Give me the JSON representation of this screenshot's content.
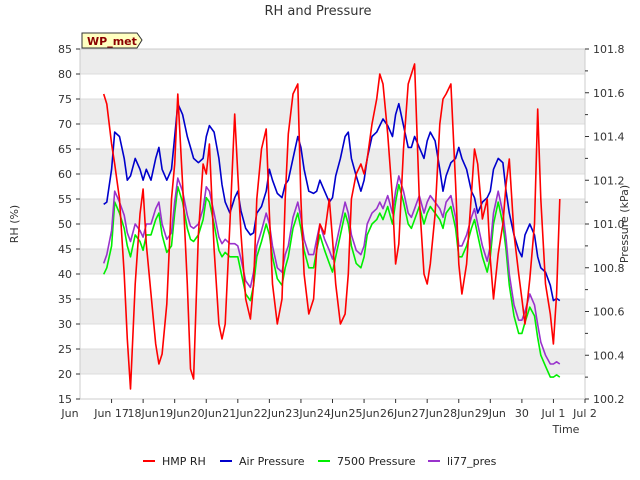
{
  "chart_data": {
    "type": "line",
    "title": "RH and Pressure",
    "badge": "WP_met",
    "xlabel": "Time",
    "ylabel_left": "RH (%)",
    "ylabel_right": "Pressure (kPa)",
    "x_ticks": [
      "Jun 17",
      "Jun 18",
      "Jun 19",
      "Jun 20",
      "Jun 21",
      "Jun 22",
      "Jun 23",
      "Jun 24",
      "Jun 25",
      "Jun 26",
      "Jun 27",
      "Jun 28",
      "Jun 29",
      "Jun 30",
      "Jul 1",
      "Jul 2"
    ],
    "x_tick_display": [
      "Jun 17",
      "18Jun",
      "19Jun",
      "20Jun",
      "21Jun",
      "22Jun",
      "23Jun",
      "24Jun",
      "25Jun",
      "26Jun",
      "27Jun",
      "28Jun",
      "29Jun",
      "30",
      "Jul 1",
      "Jul 2"
    ],
    "xlim_days": [
      16,
      32
    ],
    "ylim_left": [
      15,
      85
    ],
    "yticks_left": [
      15,
      20,
      25,
      30,
      35,
      40,
      45,
      50,
      55,
      60,
      65,
      70,
      75,
      80,
      85
    ],
    "ylim_right": [
      100.2,
      101.8
    ],
    "yticks_right": [
      "100.2",
      "100.4",
      "100.6",
      "100.8",
      "101.0",
      "101.2",
      "101.4",
      "101.6",
      "101.8"
    ],
    "grid": true,
    "legend_position": "bottom",
    "series": [
      {
        "name": "HMP RH",
        "axis": "left",
        "color": "#ff0000",
        "x": [
          16.75,
          16.85,
          17.0,
          17.1,
          17.25,
          17.4,
          17.5,
          17.6,
          17.75,
          17.9,
          18.0,
          18.1,
          18.25,
          18.4,
          18.5,
          18.6,
          18.75,
          18.9,
          19.0,
          19.1,
          19.25,
          19.4,
          19.5,
          19.6,
          19.75,
          19.9,
          20.0,
          20.1,
          20.25,
          20.4,
          20.5,
          20.6,
          20.75,
          20.9,
          21.0,
          21.1,
          21.25,
          21.4,
          21.5,
          21.6,
          21.75,
          21.9,
          22.0,
          22.1,
          22.25,
          22.4,
          22.5,
          22.6,
          22.75,
          22.9,
          23.0,
          23.1,
          23.25,
          23.4,
          23.5,
          23.6,
          23.75,
          23.9,
          24.0,
          24.1,
          24.25,
          24.4,
          24.5,
          24.6,
          24.75,
          24.9,
          25.0,
          25.1,
          25.25,
          25.4,
          25.5,
          25.6,
          25.75,
          25.9,
          26.0,
          26.1,
          26.25,
          26.4,
          26.5,
          26.6,
          26.75,
          26.9,
          27.0,
          27.1,
          27.25,
          27.4,
          27.5,
          27.6,
          27.75,
          27.9,
          28.0,
          28.1,
          28.25,
          28.4,
          28.5,
          28.6,
          28.75,
          28.9,
          29.0,
          29.1,
          29.25,
          29.4,
          29.5,
          29.6,
          29.75,
          29.9,
          30.0,
          30.1,
          30.25,
          30.4,
          30.5,
          30.6,
          30.75,
          30.9,
          31.0,
          31.1,
          31.2
        ],
        "values": [
          76,
          74,
          66,
          62,
          55,
          40,
          27,
          17,
          38,
          52,
          57,
          46,
          36,
          26,
          22,
          24,
          34,
          55,
          62,
          76,
          58,
          38,
          21,
          19,
          48,
          62,
          60,
          66,
          45,
          30,
          27,
          30,
          50,
          72,
          60,
          48,
          35,
          31,
          38,
          55,
          65,
          69,
          52,
          38,
          30,
          35,
          55,
          68,
          76,
          78,
          55,
          40,
          32,
          35,
          45,
          50,
          48,
          55,
          47,
          38,
          30,
          32,
          40,
          55,
          60,
          62,
          60,
          63,
          70,
          75,
          80,
          78,
          68,
          55,
          42,
          46,
          65,
          78,
          80,
          82,
          55,
          40,
          38,
          42,
          52,
          70,
          75,
          76,
          78,
          58,
          42,
          36,
          42,
          56,
          65,
          62,
          51,
          55,
          43,
          35,
          44,
          50,
          58,
          63,
          48,
          40,
          35,
          30,
          39,
          50,
          73,
          55,
          38,
          32,
          26,
          36,
          55
        ]
      },
      {
        "name": "Air Pressure",
        "axis": "right",
        "color": "#0000cc",
        "x": [
          16.75,
          16.85,
          17.0,
          17.1,
          17.25,
          17.4,
          17.5,
          17.6,
          17.75,
          17.9,
          18.0,
          18.1,
          18.25,
          18.4,
          18.5,
          18.6,
          18.75,
          18.9,
          19.0,
          19.1,
          19.25,
          19.4,
          19.5,
          19.6,
          19.75,
          19.9,
          20.0,
          20.1,
          20.25,
          20.4,
          20.5,
          20.6,
          20.75,
          20.9,
          21.0,
          21.1,
          21.25,
          21.4,
          21.5,
          21.6,
          21.75,
          21.9,
          22.0,
          22.1,
          22.25,
          22.4,
          22.5,
          22.6,
          22.75,
          22.9,
          23.0,
          23.1,
          23.25,
          23.4,
          23.5,
          23.6,
          23.75,
          23.9,
          24.0,
          24.1,
          24.25,
          24.4,
          24.5,
          24.6,
          24.75,
          24.9,
          25.0,
          25.1,
          25.25,
          25.4,
          25.5,
          25.6,
          25.75,
          25.9,
          26.0,
          26.1,
          26.25,
          26.4,
          26.5,
          26.6,
          26.75,
          26.9,
          27.0,
          27.1,
          27.25,
          27.4,
          27.5,
          27.6,
          27.75,
          27.9,
          28.0,
          28.1,
          28.25,
          28.4,
          28.5,
          28.6,
          28.75,
          28.9,
          29.0,
          29.1,
          29.25,
          29.4,
          29.5,
          29.6,
          29.75,
          29.9,
          30.0,
          30.1,
          30.25,
          30.4,
          30.5,
          30.6,
          30.75,
          30.9,
          31.0,
          31.1,
          31.2
        ],
        "values": [
          101.09,
          101.1,
          101.25,
          101.42,
          101.4,
          101.3,
          101.2,
          101.22,
          101.3,
          101.25,
          101.2,
          101.25,
          101.2,
          101.3,
          101.35,
          101.25,
          101.2,
          101.25,
          101.4,
          101.55,
          101.5,
          101.4,
          101.35,
          101.3,
          101.28,
          101.3,
          101.4,
          101.45,
          101.42,
          101.3,
          101.18,
          101.1,
          101.05,
          101.12,
          101.15,
          101.06,
          100.98,
          100.95,
          100.96,
          101.05,
          101.08,
          101.15,
          101.25,
          101.2,
          101.14,
          101.12,
          101.18,
          101.2,
          101.3,
          101.4,
          101.35,
          101.25,
          101.15,
          101.14,
          101.15,
          101.2,
          101.15,
          101.1,
          101.12,
          101.22,
          101.3,
          101.4,
          101.42,
          101.3,
          101.22,
          101.15,
          101.2,
          101.3,
          101.4,
          101.42,
          101.45,
          101.48,
          101.45,
          101.4,
          101.5,
          101.55,
          101.45,
          101.35,
          101.35,
          101.4,
          101.35,
          101.3,
          101.38,
          101.42,
          101.38,
          101.25,
          101.15,
          101.22,
          101.28,
          101.3,
          101.35,
          101.3,
          101.25,
          101.15,
          101.12,
          101.05,
          101.1,
          101.12,
          101.15,
          101.25,
          101.3,
          101.28,
          101.15,
          101.05,
          100.95,
          100.88,
          100.85,
          100.95,
          101.0,
          100.95,
          100.85,
          100.8,
          100.78,
          100.72,
          100.65,
          100.66,
          100.65
        ]
      },
      {
        "name": "7500 Pressure",
        "axis": "right",
        "color": "#00ee00",
        "x": [
          16.75,
          16.85,
          17.0,
          17.1,
          17.25,
          17.4,
          17.5,
          17.6,
          17.75,
          17.9,
          18.0,
          18.1,
          18.25,
          18.4,
          18.5,
          18.6,
          18.75,
          18.9,
          19.0,
          19.1,
          19.25,
          19.4,
          19.5,
          19.6,
          19.75,
          19.9,
          20.0,
          20.1,
          20.25,
          20.4,
          20.5,
          20.6,
          20.75,
          20.9,
          21.0,
          21.1,
          21.25,
          21.4,
          21.5,
          21.6,
          21.75,
          21.9,
          22.0,
          22.1,
          22.25,
          22.4,
          22.5,
          22.6,
          22.75,
          22.9,
          23.0,
          23.1,
          23.25,
          23.4,
          23.5,
          23.6,
          23.75,
          23.9,
          24.0,
          24.1,
          24.25,
          24.4,
          24.5,
          24.6,
          24.75,
          24.9,
          25.0,
          25.1,
          25.25,
          25.4,
          25.5,
          25.6,
          25.75,
          25.9,
          26.0,
          26.1,
          26.25,
          26.4,
          26.5,
          26.6,
          26.75,
          26.9,
          27.0,
          27.1,
          27.25,
          27.4,
          27.5,
          27.6,
          27.75,
          27.9,
          28.0,
          28.1,
          28.25,
          28.4,
          28.5,
          28.6,
          28.75,
          28.9,
          29.0,
          29.1,
          29.25,
          29.4,
          29.5,
          29.6,
          29.75,
          29.9,
          30.0,
          30.1,
          30.25,
          30.4,
          30.5,
          30.6,
          30.75,
          30.9,
          31.0,
          31.1,
          31.2
        ],
        "values": [
          100.77,
          100.8,
          100.9,
          101.1,
          101.05,
          100.98,
          100.9,
          100.85,
          100.95,
          100.92,
          100.88,
          100.95,
          100.95,
          101.02,
          101.05,
          100.95,
          100.87,
          100.9,
          101.05,
          101.17,
          101.1,
          100.98,
          100.93,
          100.92,
          100.95,
          101.02,
          101.12,
          101.1,
          101.0,
          100.88,
          100.85,
          100.87,
          100.85,
          100.85,
          100.85,
          100.78,
          100.68,
          100.65,
          100.72,
          100.85,
          100.92,
          101.0,
          100.95,
          100.85,
          100.75,
          100.72,
          100.8,
          100.85,
          100.98,
          101.05,
          100.98,
          100.88,
          100.8,
          100.8,
          100.88,
          100.95,
          100.88,
          100.82,
          100.78,
          100.85,
          100.95,
          101.05,
          101.0,
          100.9,
          100.82,
          100.8,
          100.85,
          100.95,
          101.0,
          101.02,
          101.05,
          101.02,
          101.08,
          101.0,
          101.1,
          101.18,
          101.1,
          101.0,
          100.98,
          101.02,
          101.08,
          101.0,
          101.05,
          101.08,
          101.05,
          101.02,
          100.98,
          101.05,
          101.08,
          100.98,
          100.85,
          100.85,
          100.9,
          100.98,
          101.02,
          100.95,
          100.85,
          100.78,
          100.85,
          101.0,
          101.1,
          101.0,
          100.88,
          100.72,
          100.58,
          100.5,
          100.5,
          100.55,
          100.62,
          100.58,
          100.48,
          100.4,
          100.35,
          100.3,
          100.3,
          100.31,
          100.3
        ]
      },
      {
        "name": "li77_pres",
        "axis": "right",
        "color": "#9933cc",
        "x": [
          16.75,
          16.85,
          17.0,
          17.1,
          17.25,
          17.4,
          17.5,
          17.6,
          17.75,
          17.9,
          18.0,
          18.1,
          18.25,
          18.4,
          18.5,
          18.6,
          18.75,
          18.9,
          19.0,
          19.1,
          19.25,
          19.4,
          19.5,
          19.6,
          19.75,
          19.9,
          20.0,
          20.1,
          20.25,
          20.4,
          20.5,
          20.6,
          20.75,
          20.9,
          21.0,
          21.1,
          21.25,
          21.4,
          21.5,
          21.6,
          21.75,
          21.9,
          22.0,
          22.1,
          22.25,
          22.4,
          22.5,
          22.6,
          22.75,
          22.9,
          23.0,
          23.1,
          23.25,
          23.4,
          23.5,
          23.6,
          23.75,
          23.9,
          24.0,
          24.1,
          24.25,
          24.4,
          24.5,
          24.6,
          24.75,
          24.9,
          25.0,
          25.1,
          25.25,
          25.4,
          25.5,
          25.6,
          25.75,
          25.9,
          26.0,
          26.1,
          26.25,
          26.4,
          26.5,
          26.6,
          26.75,
          26.9,
          27.0,
          27.1,
          27.25,
          27.4,
          27.5,
          27.6,
          27.75,
          27.9,
          28.0,
          28.1,
          28.25,
          28.4,
          28.5,
          28.6,
          28.75,
          28.9,
          29.0,
          29.1,
          29.25,
          29.4,
          29.5,
          29.6,
          29.75,
          29.9,
          30.0,
          30.1,
          30.25,
          30.4,
          30.5,
          30.6,
          30.75,
          30.9,
          31.0,
          31.1,
          31.2
        ],
        "values": [
          100.82,
          100.86,
          100.97,
          101.15,
          101.1,
          101.04,
          100.96,
          100.92,
          101.0,
          100.97,
          100.94,
          101.0,
          101.0,
          101.07,
          101.1,
          101.0,
          100.93,
          100.96,
          101.1,
          101.21,
          101.15,
          101.04,
          100.99,
          100.98,
          101.0,
          101.07,
          101.17,
          101.15,
          101.05,
          100.94,
          100.91,
          100.93,
          100.91,
          100.91,
          100.9,
          100.84,
          100.74,
          100.71,
          100.78,
          100.9,
          100.97,
          101.05,
          101.0,
          100.9,
          100.8,
          100.78,
          100.86,
          100.9,
          101.03,
          101.1,
          101.03,
          100.93,
          100.86,
          100.86,
          100.93,
          101.0,
          100.93,
          100.88,
          100.84,
          100.9,
          101.0,
          101.1,
          101.05,
          100.95,
          100.88,
          100.86,
          100.9,
          101.0,
          101.05,
          101.07,
          101.1,
          101.07,
          101.13,
          101.05,
          101.15,
          101.22,
          101.15,
          101.05,
          101.03,
          101.07,
          101.13,
          101.05,
          101.1,
          101.13,
          101.1,
          101.07,
          101.03,
          101.1,
          101.13,
          101.03,
          100.9,
          100.9,
          100.95,
          101.03,
          101.07,
          101.0,
          100.9,
          100.83,
          100.9,
          101.05,
          101.15,
          101.05,
          100.93,
          100.77,
          100.63,
          100.56,
          100.56,
          100.6,
          100.68,
          100.63,
          100.54,
          100.46,
          100.4,
          100.36,
          100.36,
          100.37,
          100.36
        ]
      }
    ]
  }
}
